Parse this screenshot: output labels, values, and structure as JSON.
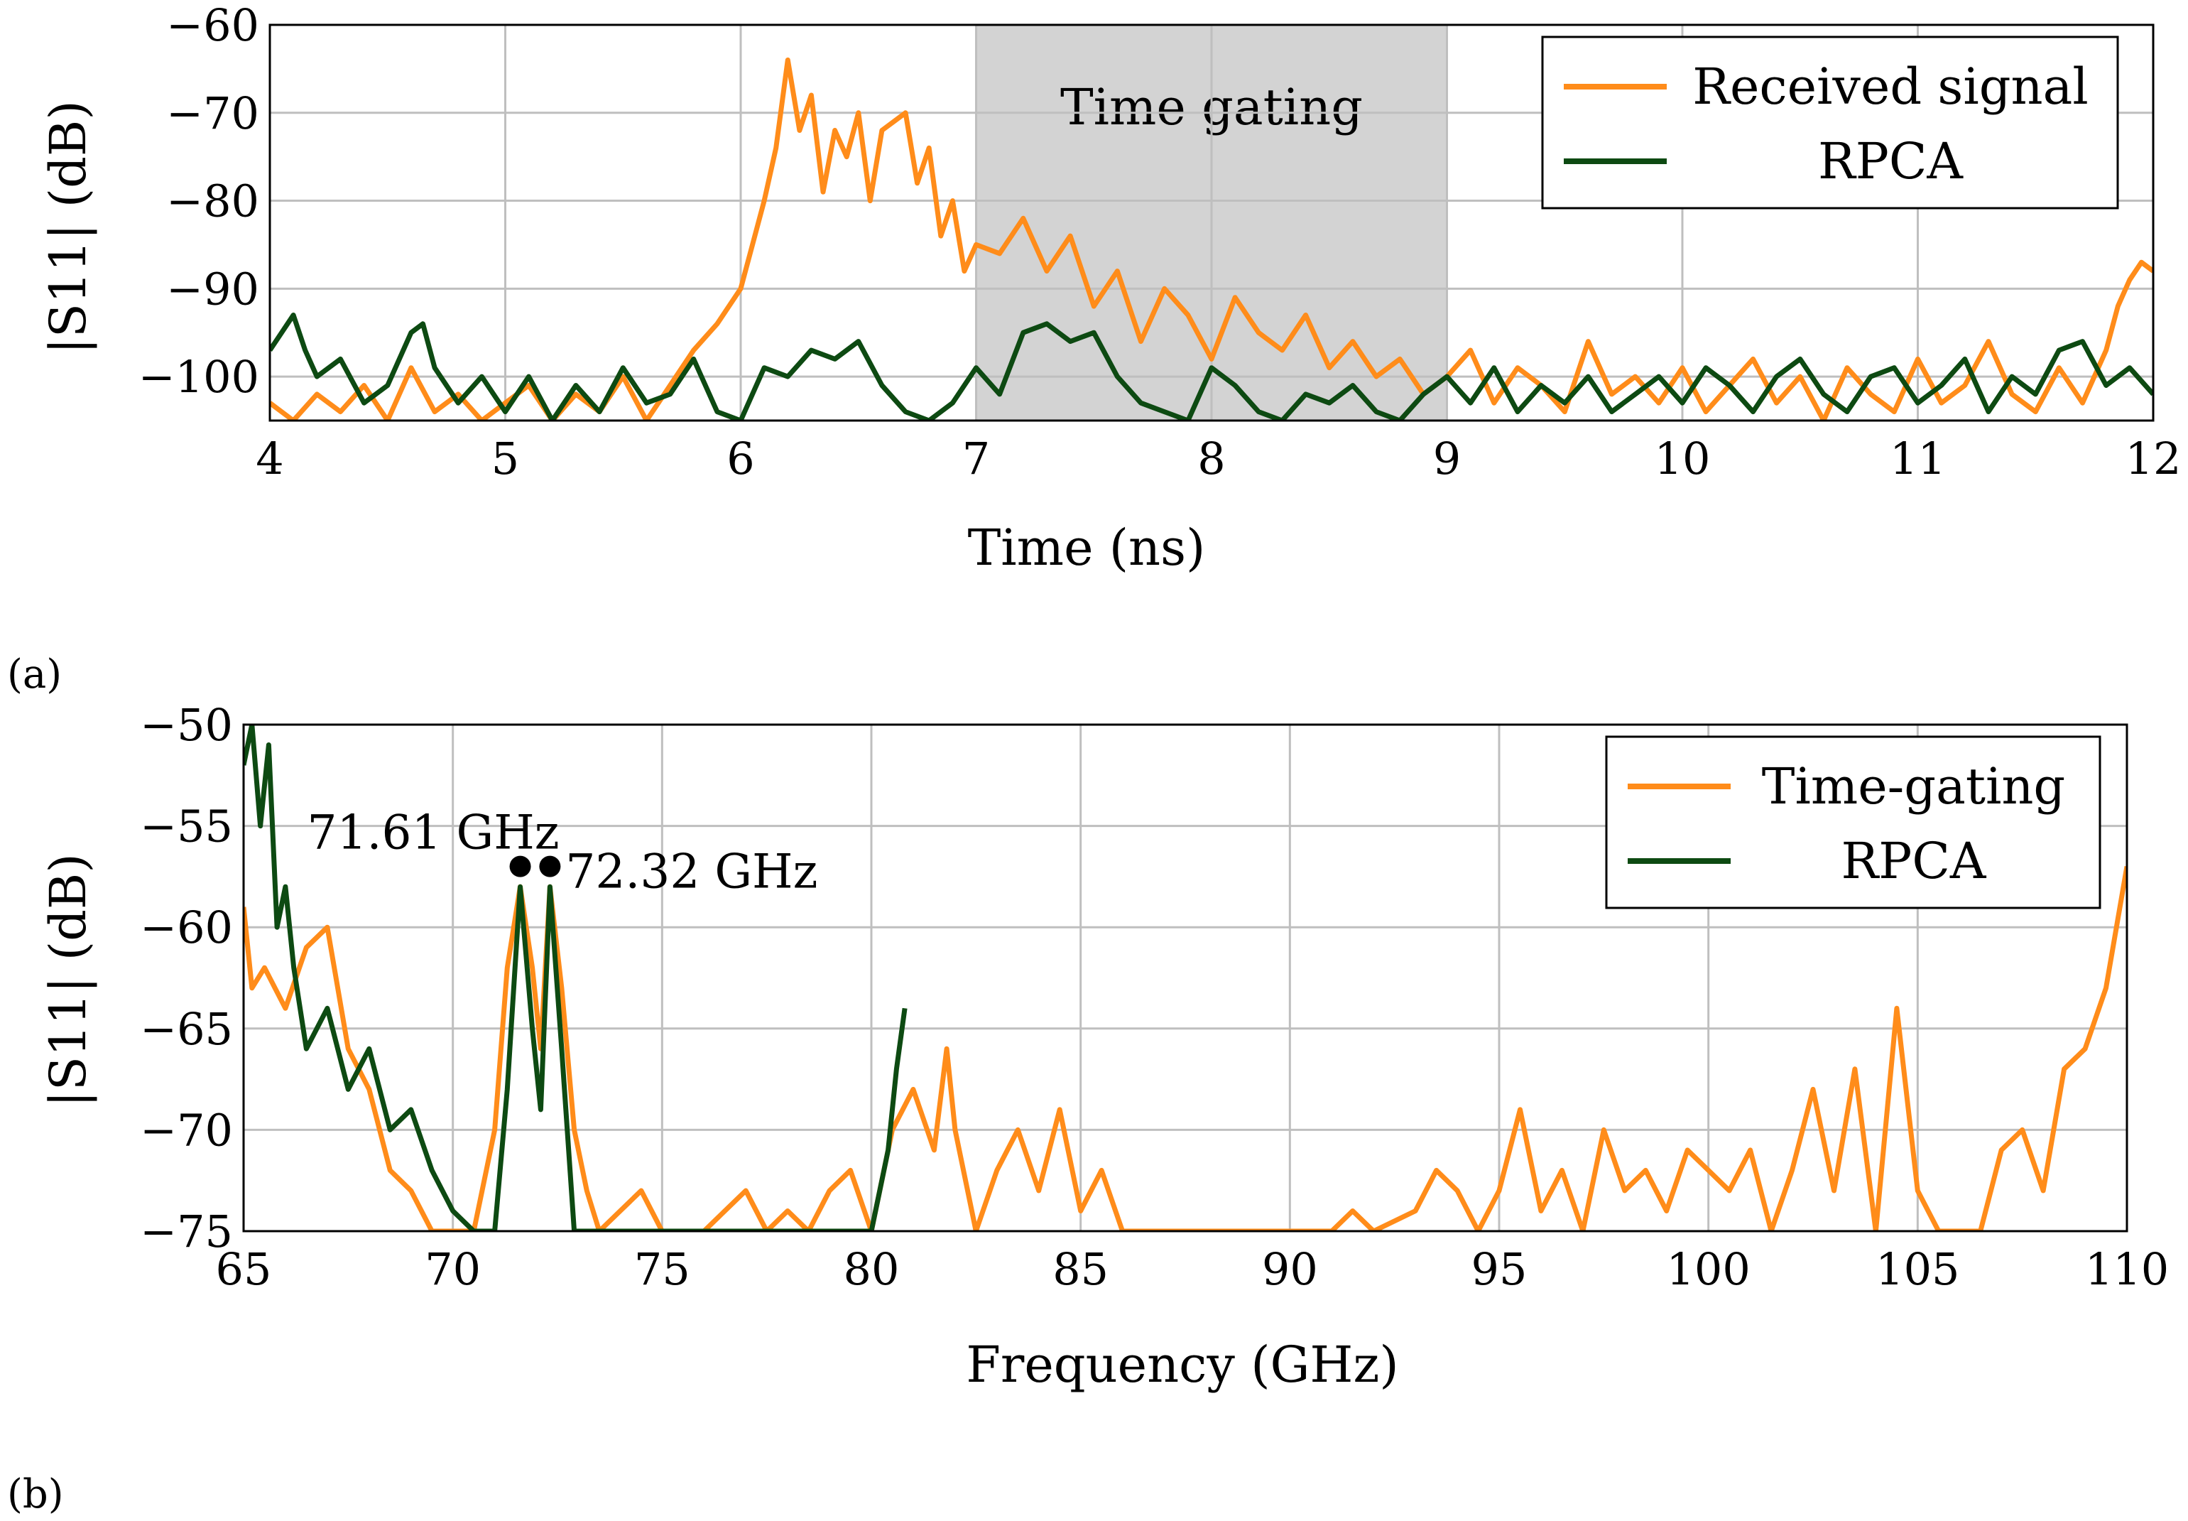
{
  "chart_data": [
    {
      "type": "line",
      "panel_label": "(a)",
      "xlabel": "Time (ns)",
      "ylabel": "|S11| (dB)",
      "xlim": [
        4,
        12
      ],
      "ylim": [
        -105,
        -60
      ],
      "xticks": [
        4,
        5,
        6,
        7,
        8,
        9,
        10,
        11,
        12
      ],
      "yticks": [
        -60,
        -70,
        -80,
        -90,
        -100
      ],
      "ytick_labels": [
        "−60",
        "−70",
        "−80",
        "−90",
        "−100"
      ],
      "grid": true,
      "legend_position": "top-right",
      "shaded_region": {
        "x": [
          7,
          9
        ],
        "label": "Time gating",
        "color": "#d3d3d3"
      },
      "series": [
        {
          "name": "Received signal",
          "color": "#ff8c1a",
          "x": [
            4.0,
            4.1,
            4.2,
            4.3,
            4.4,
            4.5,
            4.6,
            4.7,
            4.8,
            4.9,
            5.0,
            5.1,
            5.2,
            5.3,
            5.4,
            5.5,
            5.6,
            5.7,
            5.8,
            5.9,
            6.0,
            6.05,
            6.1,
            6.15,
            6.2,
            6.25,
            6.3,
            6.35,
            6.4,
            6.45,
            6.5,
            6.55,
            6.6,
            6.65,
            6.7,
            6.75,
            6.8,
            6.85,
            6.9,
            6.95,
            7.0,
            7.1,
            7.2,
            7.3,
            7.4,
            7.5,
            7.6,
            7.7,
            7.8,
            7.9,
            8.0,
            8.1,
            8.2,
            8.3,
            8.4,
            8.5,
            8.6,
            8.7,
            8.8,
            8.9,
            9.0,
            9.1,
            9.2,
            9.3,
            9.4,
            9.5,
            9.6,
            9.7,
            9.8,
            9.9,
            10.0,
            10.1,
            10.2,
            10.3,
            10.4,
            10.5,
            10.6,
            10.7,
            10.8,
            10.9,
            11.0,
            11.1,
            11.2,
            11.3,
            11.4,
            11.5,
            11.6,
            11.7,
            11.8,
            11.85,
            11.9,
            11.95,
            12.0
          ],
          "y": [
            -103,
            -105,
            -102,
            -104,
            -101,
            -105,
            -99,
            -104,
            -102,
            -105,
            -103,
            -101,
            -105,
            -102,
            -104,
            -100,
            -105,
            -101,
            -97,
            -94,
            -90,
            -85,
            -80,
            -74,
            -64,
            -72,
            -68,
            -79,
            -72,
            -75,
            -70,
            -80,
            -72,
            -71,
            -70,
            -78,
            -74,
            -84,
            -80,
            -88,
            -85,
            -86,
            -82,
            -88,
            -84,
            -92,
            -88,
            -96,
            -90,
            -93,
            -98,
            -91,
            -95,
            -97,
            -93,
            -99,
            -96,
            -100,
            -98,
            -102,
            -100,
            -97,
            -103,
            -99,
            -101,
            -104,
            -96,
            -102,
            -100,
            -103,
            -99,
            -104,
            -101,
            -98,
            -103,
            -100,
            -105,
            -99,
            -102,
            -104,
            -98,
            -103,
            -101,
            -96,
            -102,
            -104,
            -99,
            -103,
            -97,
            -92,
            -89,
            -87,
            -88
          ]
        },
        {
          "name": "RPCA",
          "color": "#0d4a12",
          "x": [
            4.0,
            4.05,
            4.1,
            4.15,
            4.2,
            4.3,
            4.4,
            4.5,
            4.6,
            4.65,
            4.7,
            4.8,
            4.9,
            5.0,
            5.1,
            5.2,
            5.3,
            5.4,
            5.5,
            5.6,
            5.7,
            5.8,
            5.9,
            6.0,
            6.1,
            6.2,
            6.3,
            6.4,
            6.5,
            6.6,
            6.7,
            6.8,
            6.9,
            7.0,
            7.1,
            7.2,
            7.3,
            7.4,
            7.5,
            7.6,
            7.7,
            7.8,
            7.9,
            8.0,
            8.1,
            8.2,
            8.3,
            8.4,
            8.5,
            8.6,
            8.7,
            8.8,
            8.9,
            9.0,
            9.1,
            9.2,
            9.3,
            9.4,
            9.5,
            9.6,
            9.7,
            9.8,
            9.9,
            10.0,
            10.1,
            10.2,
            10.3,
            10.4,
            10.5,
            10.6,
            10.7,
            10.8,
            10.9,
            11.0,
            11.1,
            11.2,
            11.3,
            11.4,
            11.5,
            11.6,
            11.7,
            11.8,
            11.9,
            12.0
          ],
          "y": [
            -97,
            -95,
            -93,
            -97,
            -100,
            -98,
            -103,
            -101,
            -95,
            -94,
            -99,
            -103,
            -100,
            -104,
            -100,
            -105,
            -101,
            -104,
            -99,
            -103,
            -102,
            -98,
            -104,
            -105,
            -99,
            -100,
            -97,
            -98,
            -96,
            -101,
            -104,
            -105,
            -103,
            -99,
            -102,
            -95,
            -94,
            -96,
            -95,
            -100,
            -103,
            -104,
            -105,
            -99,
            -101,
            -104,
            -105,
            -102,
            -103,
            -101,
            -104,
            -105,
            -102,
            -100,
            -103,
            -99,
            -104,
            -101,
            -103,
            -100,
            -104,
            -102,
            -100,
            -103,
            -99,
            -101,
            -104,
            -100,
            -98,
            -102,
            -104,
            -100,
            -99,
            -103,
            -101,
            -98,
            -104,
            -100,
            -102,
            -97,
            -96,
            -101,
            -99,
            -102
          ]
        }
      ]
    },
    {
      "type": "line",
      "panel_label": "(b)",
      "xlabel": "Frequency (GHz)",
      "ylabel": "|S11| (dB)",
      "xlim": [
        65,
        110
      ],
      "ylim": [
        -75,
        -50
      ],
      "xticks": [
        65,
        70,
        75,
        80,
        85,
        90,
        95,
        100,
        105,
        110
      ],
      "yticks": [
        -50,
        -55,
        -60,
        -65,
        -70,
        -75
      ],
      "ytick_labels": [
        "−50",
        "−55",
        "−60",
        "−65",
        "−70",
        "−75"
      ],
      "grid": true,
      "legend_position": "top-right",
      "annotations": [
        {
          "x": 71.61,
          "y": -57,
          "text": "71.61 GHz"
        },
        {
          "x": 72.32,
          "y": -57,
          "text": "72.32 GHz"
        }
      ],
      "series": [
        {
          "name": "Time-gating",
          "color": "#ff8c1a",
          "x": [
            65.0,
            65.2,
            65.5,
            66.0,
            66.5,
            67.0,
            67.5,
            68.0,
            68.5,
            69.0,
            69.5,
            70.0,
            70.5,
            71.0,
            71.3,
            71.61,
            71.9,
            72.1,
            72.32,
            72.6,
            72.9,
            73.2,
            73.5,
            74.0,
            74.5,
            75.0,
            75.5,
            76.0,
            76.5,
            77.0,
            77.5,
            78.0,
            78.5,
            79.0,
            79.5,
            80.0,
            80.5,
            81.0,
            81.5,
            81.8,
            82.0,
            82.5,
            83.0,
            83.5,
            84.0,
            84.5,
            85.0,
            85.5,
            86.0,
            87.0,
            88.0,
            89.0,
            90.0,
            91.0,
            91.5,
            92.0,
            93.0,
            93.5,
            94.0,
            94.5,
            95.0,
            95.5,
            96.0,
            96.5,
            97.0,
            97.5,
            98.0,
            98.5,
            99.0,
            99.5,
            100.0,
            100.5,
            101.0,
            101.5,
            102.0,
            102.5,
            103.0,
            103.5,
            104.0,
            104.5,
            105.0,
            105.5,
            106.0,
            106.5,
            107.0,
            107.5,
            108.0,
            108.5,
            109.0,
            109.5,
            110.0
          ],
          "y": [
            -59,
            -63,
            -62,
            -64,
            -61,
            -60,
            -66,
            -68,
            -72,
            -73,
            -75,
            -75,
            -75,
            -70,
            -62,
            -58,
            -62,
            -66,
            -58,
            -63,
            -70,
            -73,
            -75,
            -74,
            -73,
            -75,
            -75,
            -75,
            -74,
            -73,
            -75,
            -74,
            -75,
            -73,
            -72,
            -75,
            -70,
            -68,
            -71,
            -66,
            -70,
            -75,
            -72,
            -70,
            -73,
            -69,
            -74,
            -72,
            -75,
            -75,
            -75,
            -75,
            -75,
            -75,
            -74,
            -75,
            -74,
            -72,
            -73,
            -75,
            -73,
            -69,
            -74,
            -72,
            -75,
            -70,
            -73,
            -72,
            -74,
            -71,
            -72,
            -73,
            -71,
            -75,
            -72,
            -68,
            -73,
            -67,
            -75,
            -64,
            -73,
            -75,
            -75,
            -75,
            -71,
            -70,
            -73,
            -67,
            -66,
            -63,
            -57
          ]
        },
        {
          "name": "RPCA",
          "color": "#0d4a12",
          "x": [
            65.0,
            65.2,
            65.4,
            65.6,
            65.8,
            66.0,
            66.2,
            66.5,
            67.0,
            67.5,
            68.0,
            68.5,
            69.0,
            69.5,
            70.0,
            70.5,
            71.0,
            71.3,
            71.61,
            71.9,
            72.1,
            72.32,
            72.6,
            72.9,
            73.1,
            73.3,
            80.0,
            80.2,
            80.4,
            80.6,
            80.8
          ],
          "y": [
            -52,
            -50,
            -55,
            -51,
            -60,
            -58,
            -62,
            -66,
            -64,
            -68,
            -66,
            -70,
            -69,
            -72,
            -74,
            -75,
            -75,
            -68,
            -58,
            -65,
            -69,
            -58,
            -66,
            -75,
            -75,
            -75,
            -75,
            -73,
            -71,
            -67,
            -64
          ]
        }
      ]
    }
  ]
}
